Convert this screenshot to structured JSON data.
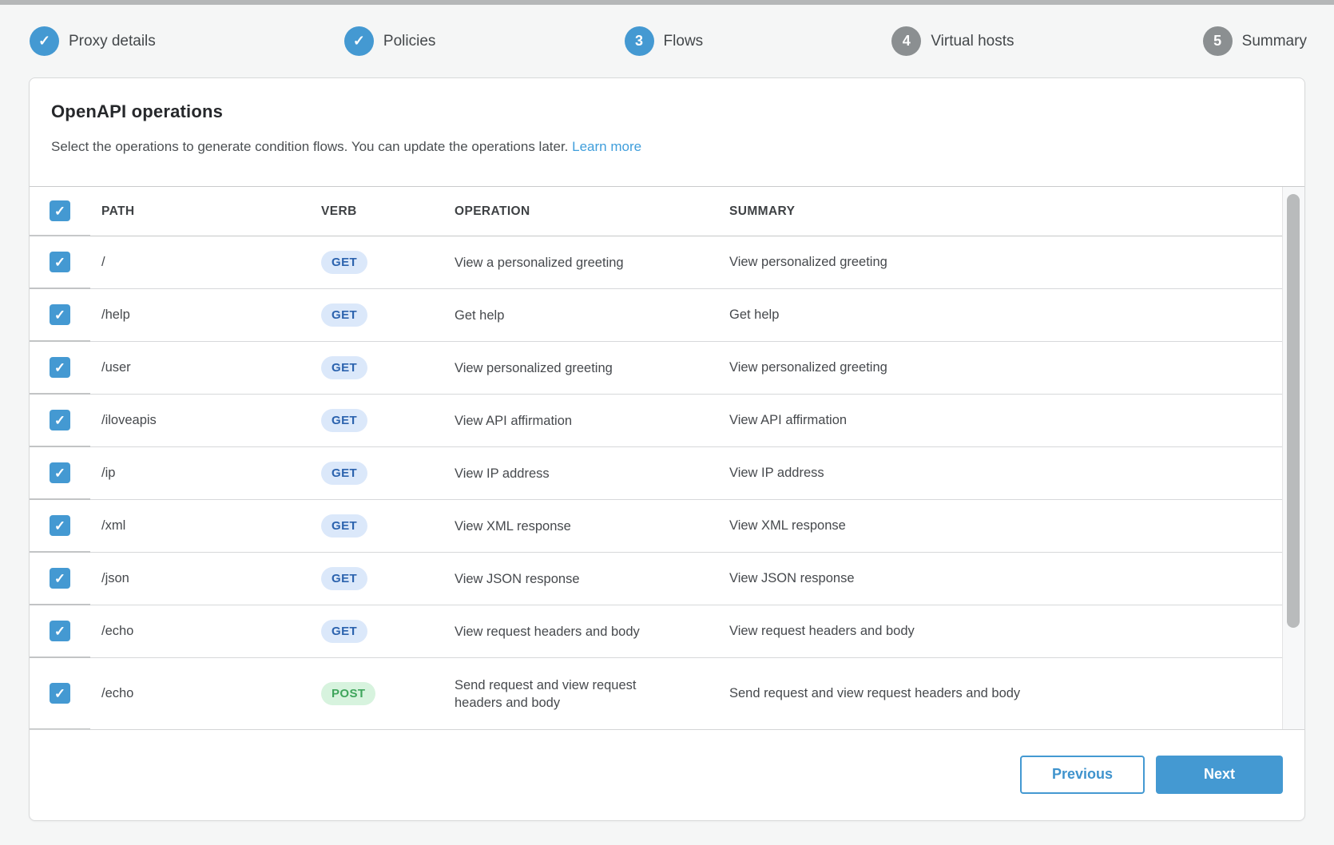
{
  "stepper": {
    "steps": [
      {
        "label": "Proxy details",
        "status": "completed",
        "marker": "✓"
      },
      {
        "label": "Policies",
        "status": "completed",
        "marker": "✓"
      },
      {
        "label": "Flows",
        "status": "current",
        "marker": "3"
      },
      {
        "label": "Virtual hosts",
        "status": "upcoming",
        "marker": "4"
      },
      {
        "label": "Summary",
        "status": "upcoming",
        "marker": "5"
      }
    ]
  },
  "panel": {
    "title": "OpenAPI operations",
    "subtitle": "Select the operations to generate condition flows. You can update the operations later.",
    "learn_more_label": "Learn more"
  },
  "table": {
    "select_all_checked": true,
    "columns": [
      "PATH",
      "VERB",
      "OPERATION",
      "SUMMARY"
    ],
    "rows": [
      {
        "checked": true,
        "path": "/",
        "verb": "GET",
        "operation": "View a personalized greeting",
        "summary": "View personalized greeting"
      },
      {
        "checked": true,
        "path": "/help",
        "verb": "GET",
        "operation": "Get help",
        "summary": "Get help"
      },
      {
        "checked": true,
        "path": "/user",
        "verb": "GET",
        "operation": "View personalized greeting",
        "summary": "View personalized greeting"
      },
      {
        "checked": true,
        "path": "/iloveapis",
        "verb": "GET",
        "operation": "View API affirmation",
        "summary": "View API affirmation"
      },
      {
        "checked": true,
        "path": "/ip",
        "verb": "GET",
        "operation": "View IP address",
        "summary": "View IP address"
      },
      {
        "checked": true,
        "path": "/xml",
        "verb": "GET",
        "operation": "View XML response",
        "summary": "View XML response"
      },
      {
        "checked": true,
        "path": "/json",
        "verb": "GET",
        "operation": "View JSON response",
        "summary": "View JSON response"
      },
      {
        "checked": true,
        "path": "/echo",
        "verb": "GET",
        "operation": "View request headers and body",
        "summary": "View request headers and body"
      },
      {
        "checked": true,
        "path": "/echo",
        "verb": "POST",
        "operation": "Send request and view request headers and body",
        "summary": "Send request and view request headers and body"
      }
    ]
  },
  "footer": {
    "previous_label": "Previous",
    "next_label": "Next"
  },
  "colors": {
    "primary_blue": "#4499d2",
    "step_inactive_gray": "#8b8f91",
    "link_blue": "#3f9edb",
    "get_badge_bg": "#dbe8fa",
    "get_badge_text": "#2c63ae",
    "post_badge_bg": "#d7f3de",
    "post_badge_text": "#3fa55c"
  }
}
